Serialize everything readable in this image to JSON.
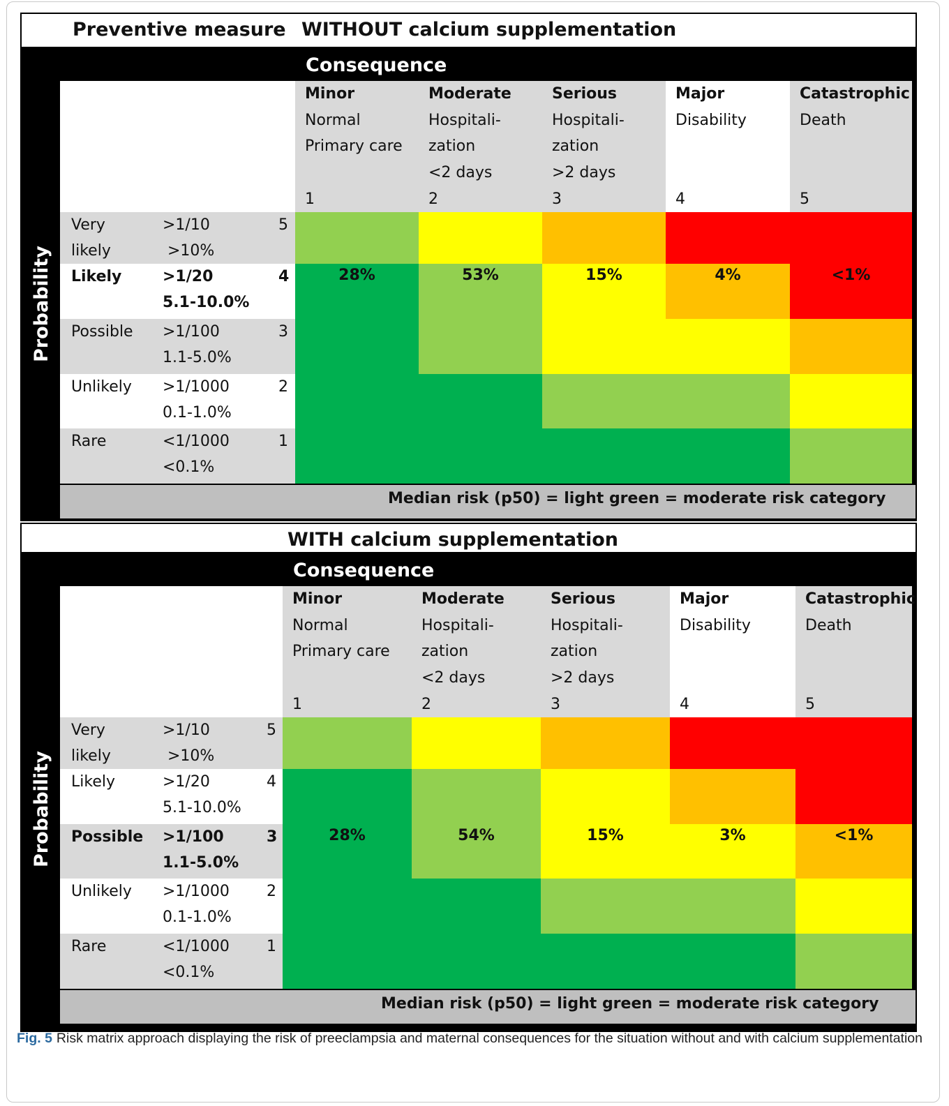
{
  "matrix_a": {
    "preventive_label": "Preventive measure",
    "title": "WITHOUT calcium supplementation",
    "consequence_label": "Consequence",
    "probability_label": "Probability",
    "columns": [
      {
        "name": "Minor",
        "l1": "Normal",
        "l2": "Primary care",
        "l3": "",
        "num": "1"
      },
      {
        "name": "Moderate",
        "l1": "Hospitali-",
        "l2": "zation",
        "l3": "<2 days",
        "num": "2"
      },
      {
        "name": "Serious",
        "l1": "Hospitali-",
        "l2": "zation",
        "l3": ">2 days",
        "num": "3"
      },
      {
        "name": "Major",
        "l1": "Disability",
        "l2": "",
        "l3": "",
        "num": "4"
      },
      {
        "name": "Catastrophic",
        "l1": "Death",
        "l2": "",
        "l3": "",
        "num": "5"
      }
    ],
    "rows": [
      {
        "label1": "Very",
        "label2": "likely",
        "ratio": ">1/10",
        "pct": " >10%",
        "num": "5",
        "values": [
          "",
          "",
          "",
          "",
          ""
        ],
        "colors": [
          "#92d050",
          "#ffff00",
          "#ffc000",
          "#ff0000",
          "#ff0000"
        ]
      },
      {
        "label1": "Likely",
        "label2": "",
        "ratio": ">1/20",
        "pct": "5.1-10.0%",
        "num": "4",
        "values": [
          "28%",
          "53%",
          "15%",
          "4%",
          "<1%"
        ],
        "colors": [
          "#00b050",
          "#92d050",
          "#ffff00",
          "#ffc000",
          "#ff0000"
        ]
      },
      {
        "label1": "Possible",
        "label2": "",
        "ratio": ">1/100",
        "pct": "1.1-5.0%",
        "num": "3",
        "values": [
          "",
          "",
          "",
          "",
          ""
        ],
        "colors": [
          "#00b050",
          "#92d050",
          "#ffff00",
          "#ffff00",
          "#ffc000"
        ]
      },
      {
        "label1": "Unlikely",
        "label2": "",
        "ratio": ">1/1000",
        "pct": "0.1-1.0%",
        "num": "2",
        "values": [
          "",
          "",
          "",
          "",
          ""
        ],
        "colors": [
          "#00b050",
          "#00b050",
          "#92d050",
          "#92d050",
          "#ffff00"
        ]
      },
      {
        "label1": "Rare",
        "label2": "",
        "ratio": "<1/1000",
        "pct": "<0.1%",
        "num": "1",
        "values": [
          "",
          "",
          "",
          "",
          ""
        ],
        "colors": [
          "#00b050",
          "#00b050",
          "#00b050",
          "#00b050",
          "#92d050"
        ]
      }
    ],
    "highlight_row": 1,
    "footer": "Median risk (p50) = light green = moderate risk category"
  },
  "matrix_b": {
    "title": "WITH calcium supplementation",
    "consequence_label": "Consequence",
    "probability_label": "Probability",
    "columns": [
      {
        "name": "Minor",
        "l1": "Normal",
        "l2": "Primary care",
        "l3": "",
        "num": "1"
      },
      {
        "name": "Moderate",
        "l1": "Hospitali-",
        "l2": "zation",
        "l3": "<2 days",
        "num": "2"
      },
      {
        "name": "Serious",
        "l1": "Hospitali-",
        "l2": "zation",
        "l3": ">2 days",
        "num": "3"
      },
      {
        "name": "Major",
        "l1": "Disability",
        "l2": "",
        "l3": "",
        "num": "4"
      },
      {
        "name": "Catastrophic",
        "l1": "Death",
        "l2": "",
        "l3": "",
        "num": "5"
      }
    ],
    "rows": [
      {
        "label1": "Very",
        "label2": "likely",
        "ratio": ">1/10",
        "pct": " >10%",
        "num": "5",
        "values": [
          "",
          "",
          "",
          "",
          ""
        ],
        "colors": [
          "#92d050",
          "#ffff00",
          "#ffc000",
          "#ff0000",
          "#ff0000"
        ]
      },
      {
        "label1": "Likely",
        "label2": "",
        "ratio": ">1/20",
        "pct": "5.1-10.0%",
        "num": "4",
        "values": [
          "",
          "",
          "",
          "",
          ""
        ],
        "colors": [
          "#00b050",
          "#92d050",
          "#ffff00",
          "#ffc000",
          "#ff0000"
        ]
      },
      {
        "label1": "Possible",
        "label2": "",
        "ratio": ">1/100",
        "pct": "1.1-5.0%",
        "num": "3",
        "values": [
          "28%",
          "54%",
          "15%",
          "3%",
          "<1%"
        ],
        "colors": [
          "#00b050",
          "#92d050",
          "#ffff00",
          "#ffff00",
          "#ffc000"
        ]
      },
      {
        "label1": "Unlikely",
        "label2": "",
        "ratio": ">1/1000",
        "pct": "0.1-1.0%",
        "num": "2",
        "values": [
          "",
          "",
          "",
          "",
          ""
        ],
        "colors": [
          "#00b050",
          "#00b050",
          "#92d050",
          "#92d050",
          "#ffff00"
        ]
      },
      {
        "label1": "Rare",
        "label2": "",
        "ratio": "<1/1000",
        "pct": "<0.1%",
        "num": "1",
        "values": [
          "",
          "",
          "",
          "",
          ""
        ],
        "colors": [
          "#00b050",
          "#00b050",
          "#00b050",
          "#00b050",
          "#92d050"
        ]
      }
    ],
    "highlight_row": 2,
    "footer": "Median risk (p50) = light green = moderate risk category"
  },
  "caption": {
    "label": "Fig. 5",
    "text": "Risk matrix approach displaying the risk of preeclampsia and maternal consequences for the situation without and with calcium supplementation"
  }
}
